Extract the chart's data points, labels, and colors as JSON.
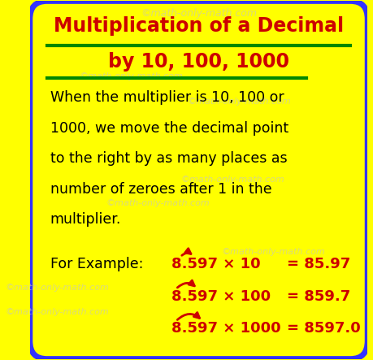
{
  "bg_color": "#FFFF00",
  "border_color": "#3333FF",
  "title_line1": "Multiplication of a Decimal",
  "title_line2": "by 10, 100, 1000",
  "title_color": "#CC0000",
  "underline_color": "#008800",
  "body_text": "When the multiplier is 10, 100 or\n1000, we move the decimal point\nto the right by as many places as\nnumber of zeroes after 1 in the\nmultiplier.",
  "body_color": "#000000",
  "example_label": "For Example:",
  "example_label_color": "#000000",
  "examples": [
    {
      "expr": "8.597 × 10",
      "result": "= 85.97"
    },
    {
      "expr": "8.597 × 100",
      "result": "= 859.7"
    },
    {
      "expr": "8.597 × 1000",
      "result": "= 8597.0"
    }
  ],
  "example_color": "#CC0000",
  "watermark": "©math-only-math.com",
  "watermark_color": "#CCCCAA",
  "arrow_color": "#CC0000",
  "fig_width": 4.59,
  "fig_height": 4.43,
  "dpi": 100
}
